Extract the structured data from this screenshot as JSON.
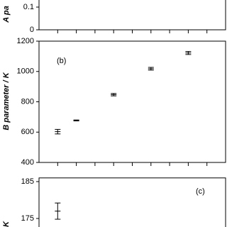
{
  "chart_data": [
    {
      "type": "errorbar",
      "ylabel": "A pa",
      "ylim": [
        0,
        0.2
      ],
      "yticks": [
        0,
        0.1
      ],
      "xlim": [
        0,
        10
      ],
      "xticks": [
        1,
        2,
        3,
        4,
        5,
        6,
        7,
        8,
        9
      ],
      "series": [
        {
          "color": "#000000",
          "x": [],
          "values": [],
          "errors": []
        }
      ]
    },
    {
      "type": "errorbar",
      "ylabel": "B parameter / K",
      "annotation": "(b)",
      "ylim": [
        400,
        1200
      ],
      "yticks": [
        400,
        600,
        800,
        1000,
        1200
      ],
      "xlim": [
        0,
        10
      ],
      "xticks": [
        1,
        2,
        3,
        4,
        5,
        6,
        7,
        8,
        9
      ],
      "series": [
        {
          "color": "#000000",
          "x": [
            1,
            2,
            4,
            6,
            8
          ],
          "values": [
            603,
            677,
            847,
            1018,
            1122
          ],
          "errors": [
            15,
            3,
            8,
            9,
            10
          ]
        }
      ]
    },
    {
      "type": "errorbar",
      "ylabel": "K",
      "annotation": "(c)",
      "ylim": [
        170,
        186
      ],
      "yticks": [
        175,
        185
      ],
      "xlim": [
        0,
        10
      ],
      "xticks": [],
      "series": [
        {
          "color": "#000000",
          "x": [
            1
          ],
          "values": [
            177
          ],
          "errors": [
            2.2
          ]
        }
      ]
    }
  ]
}
